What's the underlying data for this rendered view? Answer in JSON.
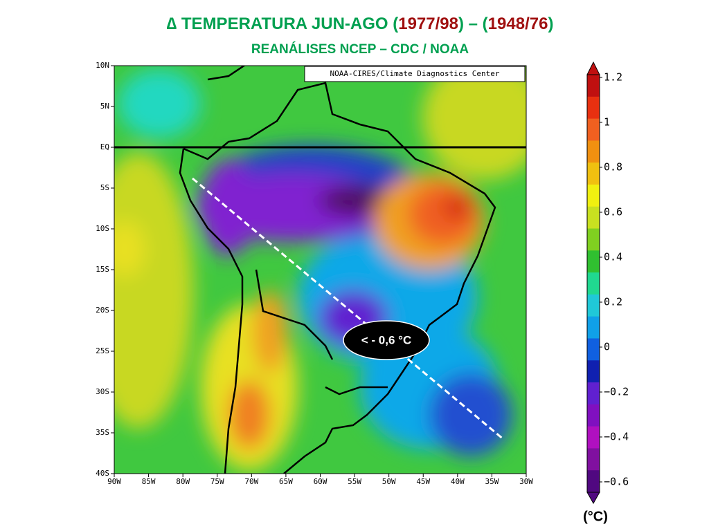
{
  "title": {
    "parts": [
      "∆ TEMPERATURA JUN-AGO (",
      "1977/98",
      ") – (",
      "1948/76",
      ")"
    ]
  },
  "subtitle": "REANÁLISES NCEP – CDC / NOAA",
  "map": {
    "credit": "NOAA-CIRES/Climate Diagnostics Center",
    "lat_labels": [
      "10N",
      "5N",
      "EQ",
      "5S",
      "10S",
      "15S",
      "20S",
      "25S",
      "30S",
      "35S",
      "40S"
    ],
    "lon_labels": [
      "90W",
      "85W",
      "80W",
      "75W",
      "70W",
      "65W",
      "60W",
      "55W",
      "50W",
      "45W",
      "40W",
      "35W",
      "30W"
    ],
    "annotation": "< - 0,6 °C"
  },
  "colorbar": {
    "labels": [
      "1.2",
      "1",
      "0.8",
      "0.6",
      "0.4",
      "0.2",
      "0",
      "−0.2",
      "−0.4",
      "−0.6"
    ],
    "unit": "(°C)"
  }
}
